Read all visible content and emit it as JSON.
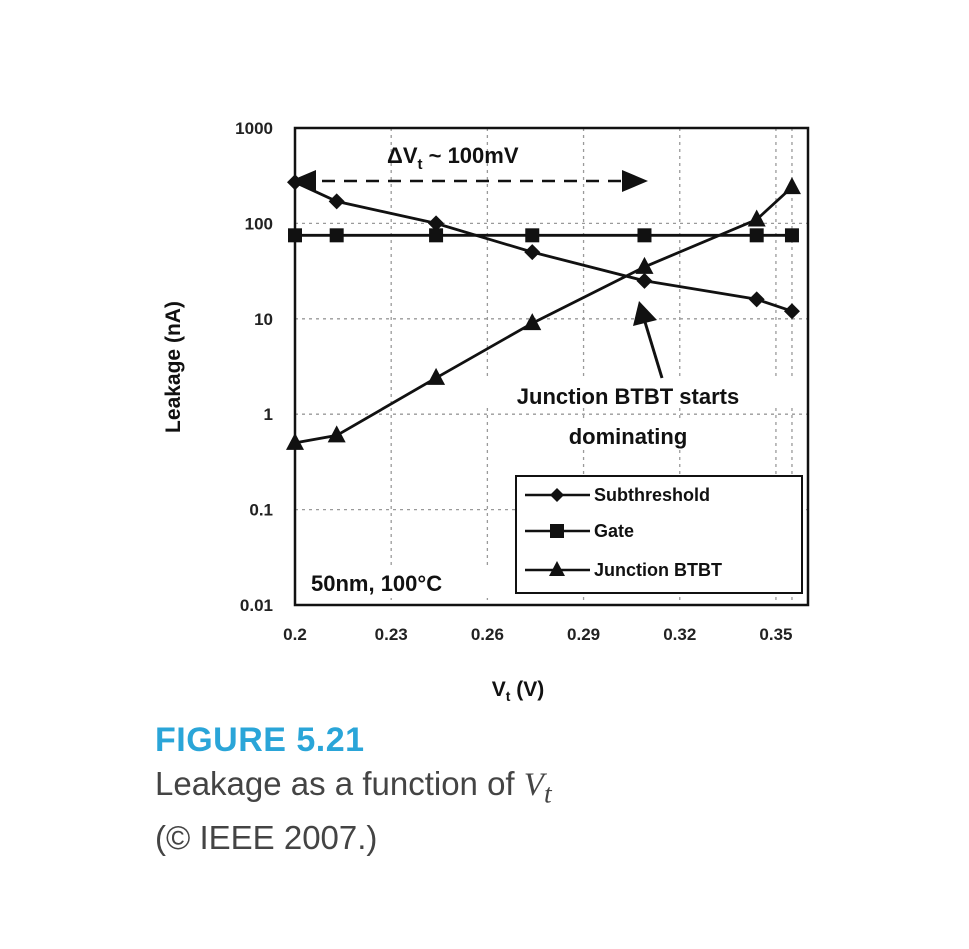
{
  "chart_data": {
    "type": "line",
    "log_scale_y": true,
    "grid": true,
    "xlabel": "V",
    "xlabel_sub": "t",
    "xlabel_unit": " (V)",
    "ylabel": "Leakage (nA)",
    "xlim": [
      0.2,
      0.36
    ],
    "ylim": [
      0.01,
      1000
    ],
    "x_ticks": [
      "0.2",
      "0.23",
      "0.26",
      "0.29",
      "0.32",
      "0.35"
    ],
    "y_ticks": [
      "0.01",
      "0.1",
      "1",
      "10",
      "100",
      "1000"
    ],
    "legend_placement": "bottom-right",
    "series": [
      {
        "name": "Subthreshold",
        "marker": "diamond",
        "x": [
          0.2,
          0.213,
          0.244,
          0.274,
          0.309,
          0.344,
          0.355
        ],
        "y": [
          270,
          170,
          100,
          50,
          25,
          16,
          12
        ]
      },
      {
        "name": "Gate",
        "marker": "square",
        "x": [
          0.2,
          0.213,
          0.244,
          0.274,
          0.309,
          0.344,
          0.355
        ],
        "y": [
          75,
          75,
          75,
          75,
          75,
          75,
          75
        ]
      },
      {
        "name": "Junction BTBT",
        "marker": "triangle",
        "x": [
          0.2,
          0.213,
          0.244,
          0.274,
          0.309,
          0.344,
          0.355
        ],
        "y": [
          0.5,
          0.6,
          2.4,
          9,
          35,
          110,
          240
        ]
      }
    ],
    "annotations": {
      "delta_vt_main": "ΔV",
      "delta_vt_sub": "t",
      "delta_vt_rest": " ~ 100mV",
      "btbt_line1": "Junction BTBT starts",
      "btbt_line2": "dominating",
      "condition": "50nm, 100°C"
    }
  },
  "caption": {
    "figure_label": "FIGURE 5.21",
    "line1_text": "Leakage as a function of ",
    "line1_var": "V",
    "line1_sub": "t",
    "line2": "(© IEEE 2007.)"
  },
  "colors": {
    "ink": "#111111",
    "grid": "#9a9a9a",
    "figure_label": "#2aa5d8",
    "caption_text": "#444444"
  }
}
